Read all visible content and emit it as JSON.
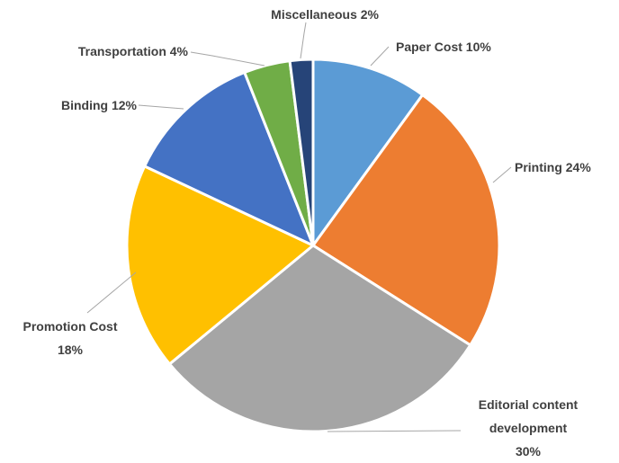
{
  "chart_data": {
    "type": "pie",
    "title": "",
    "start_angle_deg": 0,
    "direction": "clockwise",
    "legend": "none",
    "slices": [
      {
        "label": "Paper Cost",
        "value": 10,
        "display": [
          "Paper Cost 10%"
        ],
        "color": "#5B9BD5"
      },
      {
        "label": "Printing",
        "value": 24,
        "display": [
          "Printing 24%"
        ],
        "color": "#ED7D31"
      },
      {
        "label": "Editorial content development",
        "value": 30,
        "display": [
          "Editorial content",
          "development",
          "30%"
        ],
        "color": "#A5A5A5"
      },
      {
        "label": "Promotion Cost",
        "value": 18,
        "display": [
          "Promotion Cost",
          "18%"
        ],
        "color": "#FFC000"
      },
      {
        "label": "Binding",
        "value": 12,
        "display": [
          "Binding 12%"
        ],
        "color": "#4472C4"
      },
      {
        "label": "Transportation",
        "value": 4,
        "display": [
          "Transportation 4%"
        ],
        "color": "#70AD47"
      },
      {
        "label": "Miscellaneous",
        "value": 2,
        "display": [
          "Miscellaneous 2%"
        ],
        "color": "#264478"
      }
    ]
  }
}
